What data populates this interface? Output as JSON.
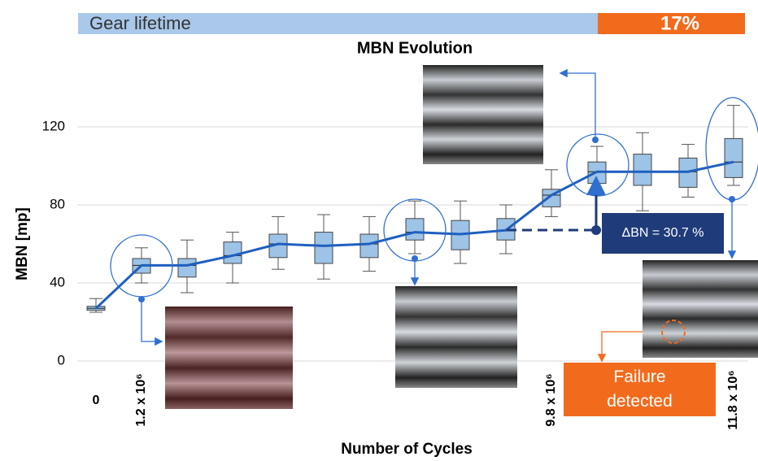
{
  "chart_data": {
    "type": "box",
    "banner_left": "Gear lifetime",
    "banner_right": "17%",
    "title": "MBN Evolution",
    "y_label": "MBN [mp]",
    "x_label": "Number of Cycles",
    "categories": [
      "0",
      "1.2 x 10⁶",
      null,
      null,
      null,
      null,
      null,
      null,
      null,
      null,
      "9.8 x 10⁶",
      null,
      null,
      null,
      "11.8 x 10⁶"
    ],
    "series": [
      {
        "name": "min",
        "values": [
          25,
          40,
          35,
          40,
          47,
          42,
          46,
          55,
          50,
          55,
          74,
          85,
          77,
          84,
          90
        ]
      },
      {
        "name": "q1",
        "values": [
          26,
          45,
          43,
          50,
          53,
          50,
          53,
          62,
          57,
          62,
          79,
          91,
          90,
          89,
          94
        ]
      },
      {
        "name": "median",
        "values": [
          27,
          49,
          49,
          54,
          60,
          59,
          60,
          66,
          65,
          67,
          85,
          97,
          97,
          97,
          102
        ]
      },
      {
        "name": "q3",
        "values": [
          28,
          52.5,
          52.5,
          61,
          65,
          66,
          65,
          73,
          72,
          73,
          88,
          102,
          106,
          104,
          114
        ]
      },
      {
        "name": "max",
        "values": [
          32,
          58,
          62,
          66,
          74,
          75,
          74,
          82,
          82,
          80,
          98,
          110,
          117,
          111,
          131
        ]
      }
    ],
    "color": "#9dc3e6",
    "line_color": "#1f5fbf",
    "ylim": [
      0,
      140
    ],
    "yticks": [
      0,
      40,
      80,
      120
    ],
    "grid": true,
    "annotations": [
      "ΔBN = 30.7 %",
      "Failure detected"
    ]
  }
}
